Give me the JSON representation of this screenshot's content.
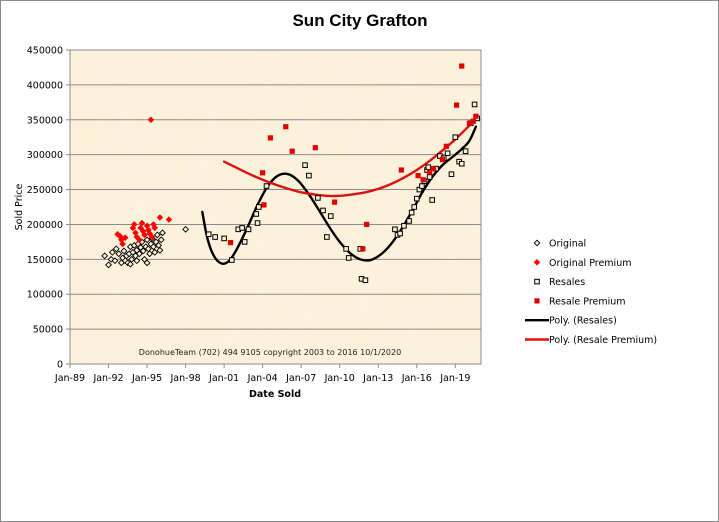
{
  "chart_data": {
    "type": "scatter",
    "title": "Sun City Grafton",
    "xlabel": "Date Sold",
    "ylabel": "Sold Price",
    "xlim": [
      1989.0,
      2021.0
    ],
    "ylim": [
      0,
      450000
    ],
    "y_ticks": [
      0,
      50000,
      100000,
      150000,
      200000,
      250000,
      300000,
      350000,
      400000,
      450000
    ],
    "y_tick_labels": [
      "0",
      "50000",
      "100000",
      "150000",
      "200000",
      "250000",
      "300000",
      "350000",
      "400000",
      "450000"
    ],
    "x_ticks": [
      1989,
      1992,
      1995,
      1998,
      2001,
      2004,
      2007,
      2010,
      2013,
      2016,
      2019
    ],
    "x_tick_labels": [
      "Jan-89",
      "Jan-92",
      "Jan-95",
      "Jan-98",
      "Jan-01",
      "Jan-04",
      "Jan-07",
      "Jan-10",
      "Jan-13",
      "Jan-16",
      "Jan-19"
    ],
    "grid": "horizontal",
    "legend_position": "right",
    "plot_background": "#fcf0d8",
    "annotation": "DonohueTeam   (702) 494 9105 copyright  2003 to 2016  10/1/2020",
    "series": [
      {
        "name": "Original",
        "marker": "diamond-open",
        "color": "#000000",
        "points": [
          [
            1991.7,
            155000
          ],
          [
            1992.0,
            142000
          ],
          [
            1992.2,
            150000
          ],
          [
            1992.3,
            160000
          ],
          [
            1992.5,
            148000
          ],
          [
            1992.6,
            165000
          ],
          [
            1992.8,
            158000
          ],
          [
            1993.0,
            145000
          ],
          [
            1993.1,
            152000
          ],
          [
            1993.2,
            162000
          ],
          [
            1993.3,
            148000
          ],
          [
            1993.4,
            155000
          ],
          [
            1993.5,
            145000
          ],
          [
            1993.6,
            158000
          ],
          [
            1993.7,
            168000
          ],
          [
            1993.8,
            150000
          ],
          [
            1993.9,
            160000
          ],
          [
            1994.0,
            170000
          ],
          [
            1994.1,
            155000
          ],
          [
            1994.2,
            163000
          ],
          [
            1994.3,
            172000
          ],
          [
            1994.4,
            158000
          ],
          [
            1994.5,
            167000
          ],
          [
            1994.6,
            175000
          ],
          [
            1994.7,
            162000
          ],
          [
            1994.8,
            150000
          ],
          [
            1994.9,
            168000
          ],
          [
            1995.0,
            178000
          ],
          [
            1995.1,
            165000
          ],
          [
            1995.2,
            158000
          ],
          [
            1995.3,
            172000
          ],
          [
            1995.4,
            180000
          ],
          [
            1995.5,
            168000
          ],
          [
            1995.6,
            160000
          ],
          [
            1995.7,
            175000
          ],
          [
            1995.8,
            185000
          ],
          [
            1995.9,
            170000
          ],
          [
            1996.0,
            163000
          ],
          [
            1996.1,
            178000
          ],
          [
            1996.2,
            188000
          ],
          [
            1994.2,
            148000
          ],
          [
            1995.0,
            145000
          ],
          [
            1993.7,
            143000
          ],
          [
            1998.0,
            193000
          ]
        ]
      },
      {
        "name": "Original Premium",
        "marker": "diamond-filled",
        "color": "#ff0000",
        "points": [
          [
            1992.7,
            186000
          ],
          [
            1992.9,
            183000
          ],
          [
            1993.0,
            178000
          ],
          [
            1993.1,
            172000
          ],
          [
            1993.3,
            181000
          ],
          [
            1993.9,
            195000
          ],
          [
            1994.0,
            200000
          ],
          [
            1994.1,
            188000
          ],
          [
            1994.2,
            182000
          ],
          [
            1994.4,
            178000
          ],
          [
            1994.5,
            195000
          ],
          [
            1994.7,
            190000
          ],
          [
            1994.8,
            185000
          ],
          [
            1995.0,
            198000
          ],
          [
            1995.1,
            192000
          ],
          [
            1995.2,
            187000
          ],
          [
            1995.4,
            182000
          ],
          [
            1995.5,
            200000
          ],
          [
            1995.6,
            195000
          ],
          [
            1994.6,
            202000
          ],
          [
            1996.0,
            210000
          ],
          [
            1996.7,
            207000
          ],
          [
            1995.3,
            350000
          ]
        ]
      },
      {
        "name": "Resales",
        "marker": "square-open",
        "color": "#000000",
        "points": [
          [
            1999.8,
            186000
          ],
          [
            2000.3,
            182000
          ],
          [
            2001.0,
            180000
          ],
          [
            2001.6,
            149000
          ],
          [
            2002.1,
            193000
          ],
          [
            2002.4,
            195000
          ],
          [
            2002.6,
            175000
          ],
          [
            2002.9,
            193000
          ],
          [
            2003.5,
            215000
          ],
          [
            2003.6,
            202000
          ],
          [
            2003.7,
            225000
          ],
          [
            2004.3,
            255000
          ],
          [
            2007.3,
            285000
          ],
          [
            2007.6,
            270000
          ],
          [
            2008.3,
            238000
          ],
          [
            2008.7,
            220000
          ],
          [
            2009.0,
            182000
          ],
          [
            2009.3,
            212000
          ],
          [
            2010.5,
            165000
          ],
          [
            2010.7,
            152000
          ],
          [
            2011.6,
            165000
          ],
          [
            2011.7,
            122000
          ],
          [
            2012.0,
            120000
          ],
          [
            2014.3,
            193000
          ],
          [
            2014.5,
            185000
          ],
          [
            2014.7,
            187000
          ],
          [
            2015.0,
            198000
          ],
          [
            2015.4,
            205000
          ],
          [
            2015.6,
            217000
          ],
          [
            2015.8,
            225000
          ],
          [
            2016.0,
            237000
          ],
          [
            2016.2,
            250000
          ],
          [
            2016.4,
            255000
          ],
          [
            2016.6,
            262000
          ],
          [
            2016.8,
            278000
          ],
          [
            2017.0,
            268000
          ],
          [
            2017.2,
            235000
          ],
          [
            2017.5,
            280000
          ],
          [
            2017.8,
            298000
          ],
          [
            2018.1,
            295000
          ],
          [
            2018.4,
            302000
          ],
          [
            2018.7,
            272000
          ],
          [
            2019.0,
            325000
          ],
          [
            2019.3,
            290000
          ],
          [
            2019.5,
            287000
          ],
          [
            2019.8,
            305000
          ],
          [
            2020.2,
            345000
          ],
          [
            2020.5,
            372000
          ],
          [
            2020.7,
            352000
          ],
          [
            2016.9,
            282000
          ]
        ]
      },
      {
        "name": "Resale Premium",
        "marker": "square-filled",
        "color": "#e00000",
        "points": [
          [
            2001.5,
            174000
          ],
          [
            2004.0,
            274000
          ],
          [
            2004.1,
            228000
          ],
          [
            2004.6,
            324000
          ],
          [
            2005.8,
            340000
          ],
          [
            2006.3,
            305000
          ],
          [
            2008.1,
            310000
          ],
          [
            2009.6,
            232000
          ],
          [
            2011.8,
            165000
          ],
          [
            2012.1,
            200000
          ],
          [
            2014.8,
            278000
          ],
          [
            2016.1,
            270000
          ],
          [
            2016.5,
            264000
          ],
          [
            2017.0,
            275000
          ],
          [
            2017.3,
            280000
          ],
          [
            2018.0,
            293000
          ],
          [
            2018.3,
            312000
          ],
          [
            2019.1,
            371000
          ],
          [
            2019.5,
            427000
          ],
          [
            2020.1,
            345000
          ],
          [
            2020.4,
            348000
          ],
          [
            2020.6,
            355000
          ]
        ]
      },
      {
        "name": "Poly. (Resales)",
        "type": "line",
        "color": "#000000",
        "points": [
          [
            1999.3,
            218000
          ],
          [
            1999.7,
            180000
          ],
          [
            2000.2,
            155000
          ],
          [
            2000.8,
            144000
          ],
          [
            2001.4,
            148000
          ],
          [
            2002.0,
            165000
          ],
          [
            2002.8,
            195000
          ],
          [
            2003.6,
            228000
          ],
          [
            2004.4,
            255000
          ],
          [
            2005.2,
            270000
          ],
          [
            2006.0,
            272000
          ],
          [
            2006.8,
            262000
          ],
          [
            2007.6,
            243000
          ],
          [
            2008.4,
            220000
          ],
          [
            2009.2,
            196000
          ],
          [
            2010.0,
            175000
          ],
          [
            2010.8,
            159000
          ],
          [
            2011.6,
            150000
          ],
          [
            2012.4,
            149000
          ],
          [
            2013.2,
            157000
          ],
          [
            2014.0,
            172000
          ],
          [
            2014.8,
            193000
          ],
          [
            2015.6,
            218000
          ],
          [
            2016.4,
            245000
          ],
          [
            2017.2,
            268000
          ],
          [
            2018.0,
            285000
          ],
          [
            2018.8,
            297000
          ],
          [
            2019.5,
            308000
          ],
          [
            2020.1,
            320000
          ],
          [
            2020.6,
            340000
          ]
        ]
      },
      {
        "name": "Poly. (Resale Premium)",
        "type": "line",
        "color": "#dd1111",
        "points": [
          [
            2001.0,
            290000
          ],
          [
            2002.0,
            281000
          ],
          [
            2003.0,
            272000
          ],
          [
            2004.0,
            264000
          ],
          [
            2005.0,
            257000
          ],
          [
            2006.0,
            251000
          ],
          [
            2007.0,
            246000
          ],
          [
            2008.0,
            243000
          ],
          [
            2009.0,
            241000
          ],
          [
            2010.0,
            241000
          ],
          [
            2011.0,
            243000
          ],
          [
            2012.0,
            246000
          ],
          [
            2013.0,
            251000
          ],
          [
            2014.0,
            258000
          ],
          [
            2015.0,
            267000
          ],
          [
            2016.0,
            278000
          ],
          [
            2017.0,
            291000
          ],
          [
            2018.0,
            306000
          ],
          [
            2019.0,
            322000
          ],
          [
            2020.0,
            340000
          ],
          [
            2020.7,
            353000
          ]
        ]
      }
    ]
  }
}
